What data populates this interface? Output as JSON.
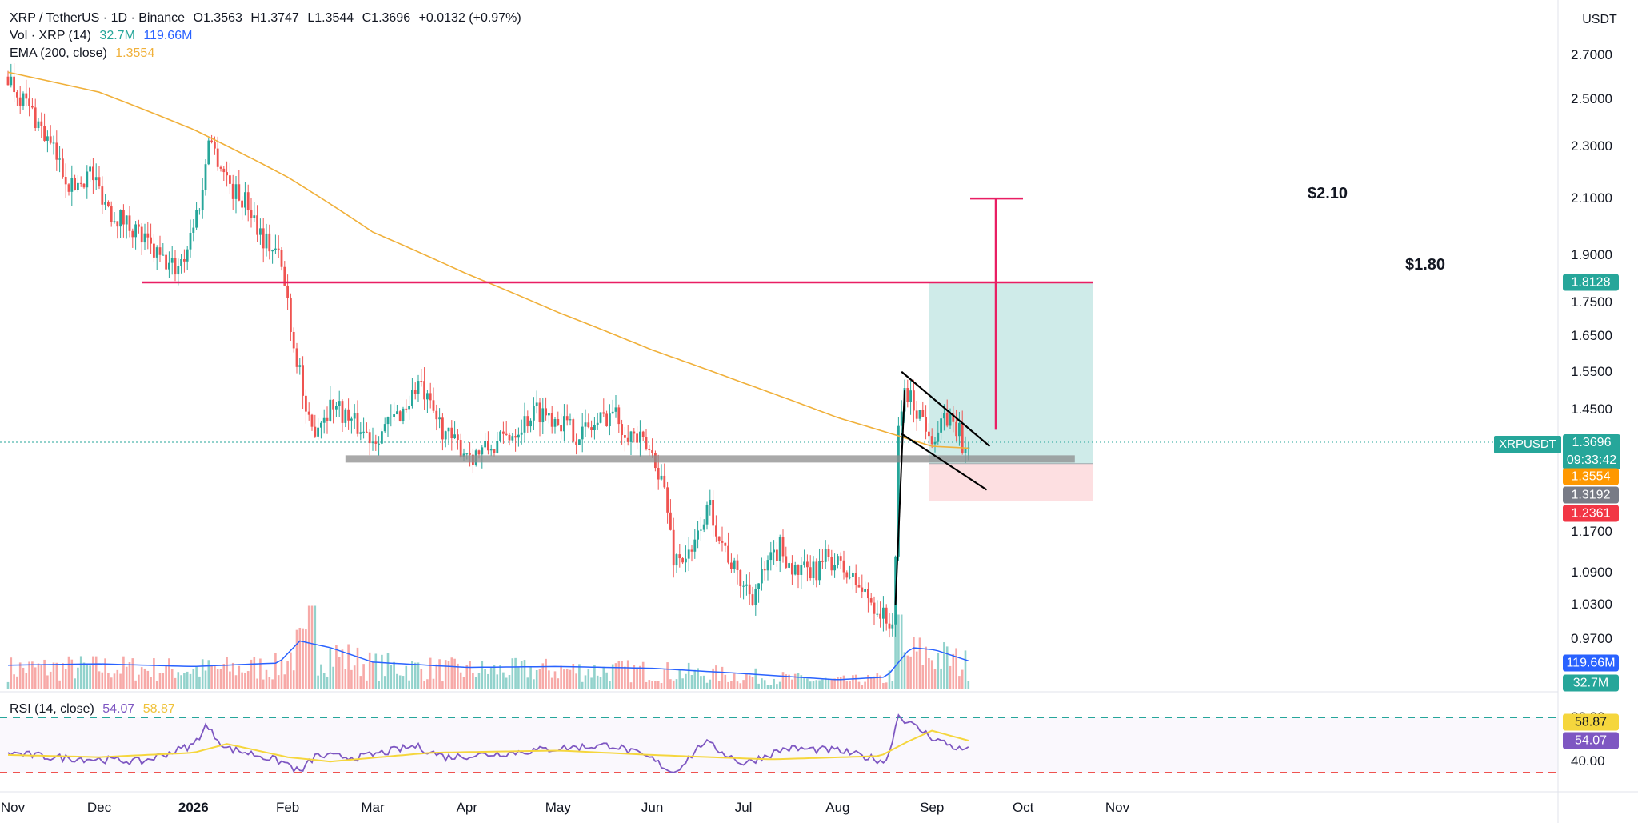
{
  "header": {
    "symbol": "XRP / TetherUS · 1D · Binance",
    "open": "O1.3563",
    "high": "H1.3747",
    "low": "L1.3544",
    "close": "C1.3696",
    "change": "+0.0132 (+0.97%)",
    "vol_label": "Vol · XRP (14)",
    "vol_value": "32.7M",
    "vol_ma": "119.66M",
    "ema_label": "EMA (200, close)",
    "ema_value": "1.3554"
  },
  "rsi_header": {
    "label": "RSI (14, close)",
    "value": "54.07",
    "ma": "58.87"
  },
  "currency": "USDT",
  "price_ticks": [
    "2.7000",
    "2.5000",
    "2.3000",
    "2.1000",
    "1.9000",
    "1.7500",
    "1.6500",
    "1.5500",
    "1.4500",
    "1.1700",
    "1.0900",
    "1.0300",
    "0.9700"
  ],
  "rsi_ticks": [
    "80.00",
    "40.00"
  ],
  "x_labels": [
    {
      "text": "Nov",
      "bold": false
    },
    {
      "text": "Dec",
      "bold": false
    },
    {
      "text": "2026",
      "bold": true
    },
    {
      "text": "Feb",
      "bold": false
    },
    {
      "text": "Mar",
      "bold": false
    },
    {
      "text": "Apr",
      "bold": false
    },
    {
      "text": "May",
      "bold": false
    },
    {
      "text": "Jun",
      "bold": false
    },
    {
      "text": "Jul",
      "bold": false
    },
    {
      "text": "Aug",
      "bold": false
    },
    {
      "text": "Sep",
      "bold": false
    },
    {
      "text": "Oct",
      "bold": false
    },
    {
      "text": "Nov",
      "bold": false
    }
  ],
  "badges": {
    "target": "1.8128",
    "symbol": "XRPUSDT",
    "last_price": "1.3696",
    "countdown": "09:33:42",
    "ema": "1.3554",
    "entry": "1.3192",
    "stop": "1.2361",
    "vol_ma": "119.66M",
    "vol": "32.7M",
    "rsi_ma": "58.87",
    "rsi": "54.07"
  },
  "annotations": {
    "target_210": "$2.10",
    "level_180": "$1.80"
  },
  "colors": {
    "up": "#26a69a",
    "down": "#ef5350",
    "ema": "#f0b03a",
    "resistance": "#e91e63",
    "rsi": "#7e57c2",
    "rsi_ma": "#f5d63d",
    "vol_ma": "#2962ff",
    "support": "#9e9e9e"
  },
  "chart_data": {
    "type": "candlestick",
    "title": "XRP / TetherUS · 1D · Binance",
    "price_range": [
      0.97,
      2.7
    ],
    "scale": "log",
    "x_start": "2025-11-01",
    "x_end": "2026-11-20",
    "price_path": [
      [
        "2025-11-01",
        2.6
      ],
      [
        "2025-11-10",
        2.42
      ],
      [
        "2025-11-15",
        2.3
      ],
      [
        "2025-11-22",
        2.14
      ],
      [
        "2025-11-28",
        2.2
      ],
      [
        "2025-12-05",
        2.05
      ],
      [
        "2025-12-12",
        2.0
      ],
      [
        "2025-12-18",
        1.92
      ],
      [
        "2025-12-22",
        1.88
      ],
      [
        "2025-12-26",
        1.86
      ],
      [
        "2025-12-29",
        1.9
      ],
      [
        "2026-01-04",
        2.12
      ],
      [
        "2026-01-06",
        2.36
      ],
      [
        "2026-01-08",
        2.28
      ],
      [
        "2026-01-14",
        2.13
      ],
      [
        "2026-01-19",
        2.08
      ],
      [
        "2026-01-24",
        1.96
      ],
      [
        "2026-01-29",
        1.9
      ],
      [
        "2026-02-01",
        1.76
      ],
      [
        "2026-02-03",
        1.62
      ],
      [
        "2026-02-05",
        1.56
      ],
      [
        "2026-02-07",
        1.42
      ],
      [
        "2026-02-09",
        1.4
      ],
      [
        "2026-02-13",
        1.44
      ],
      [
        "2026-02-16",
        1.47
      ],
      [
        "2026-02-22",
        1.42
      ],
      [
        "2026-03-01",
        1.38
      ],
      [
        "2026-03-07",
        1.42
      ],
      [
        "2026-03-12",
        1.46
      ],
      [
        "2026-03-16",
        1.52
      ],
      [
        "2026-03-20",
        1.45
      ],
      [
        "2026-03-27",
        1.37
      ],
      [
        "2026-04-03",
        1.34
      ],
      [
        "2026-04-10",
        1.36
      ],
      [
        "2026-04-17",
        1.4
      ],
      [
        "2026-04-24",
        1.45
      ],
      [
        "2026-05-01",
        1.43
      ],
      [
        "2026-05-07",
        1.39
      ],
      [
        "2026-05-13",
        1.41
      ],
      [
        "2026-05-19",
        1.45
      ],
      [
        "2026-05-22",
        1.41
      ],
      [
        "2026-05-28",
        1.37
      ],
      [
        "2026-06-02",
        1.33
      ],
      [
        "2026-06-05",
        1.26
      ],
      [
        "2026-06-08",
        1.12
      ],
      [
        "2026-06-14",
        1.12
      ],
      [
        "2026-06-17",
        1.19
      ],
      [
        "2026-06-20",
        1.22
      ],
      [
        "2026-06-24",
        1.15
      ],
      [
        "2026-06-29",
        1.08
      ],
      [
        "2026-07-04",
        1.05
      ],
      [
        "2026-07-09",
        1.1
      ],
      [
        "2026-07-13",
        1.14
      ],
      [
        "2026-07-18",
        1.09
      ],
      [
        "2026-07-24",
        1.09
      ],
      [
        "2026-07-29",
        1.12
      ],
      [
        "2026-08-02",
        1.1
      ],
      [
        "2026-08-07",
        1.07
      ],
      [
        "2026-08-13",
        1.03
      ],
      [
        "2026-08-17",
        1.0
      ],
      [
        "2026-08-19",
        1.0
      ],
      [
        "2026-08-20",
        1.1
      ],
      [
        "2026-08-21",
        1.4
      ],
      [
        "2026-08-23",
        1.5
      ],
      [
        "2026-08-28",
        1.44
      ],
      [
        "2026-09-02",
        1.38
      ],
      [
        "2026-09-06",
        1.43
      ],
      [
        "2026-09-10",
        1.4
      ],
      [
        "2026-09-11",
        1.34
      ],
      [
        "2026-09-13",
        1.3696
      ]
    ],
    "ema200_path": [
      [
        "2025-11-01",
        2.62
      ],
      [
        "2025-12-01",
        2.53
      ],
      [
        "2026-01-01",
        2.37
      ],
      [
        "2026-02-01",
        2.18
      ],
      [
        "2026-03-01",
        1.98
      ],
      [
        "2026-04-01",
        1.84
      ],
      [
        "2026-05-01",
        1.72
      ],
      [
        "2026-06-01",
        1.61
      ],
      [
        "2026-07-01",
        1.52
      ],
      [
        "2026-08-01",
        1.43
      ],
      [
        "2026-09-01",
        1.36
      ],
      [
        "2026-09-13",
        1.3554
      ]
    ],
    "resistance_180": {
      "from": "2025-12-15",
      "to": "2026-10-24",
      "price": 1.8128
    },
    "support_zone": {
      "from": "2026-02-20",
      "to": "2026-10-18",
      "price": 1.33
    },
    "trade": {
      "from": "2026-08-31",
      "to": "2026-10-24",
      "target": 1.8128,
      "entry": 1.3192,
      "stop": 1.2361
    },
    "target_210": {
      "date": "2026-09-22",
      "price": 2.1,
      "arrow_from": 1.4
    },
    "rsi_range": [
      30,
      90
    ],
    "rsi_bands": [
      80,
      30
    ],
    "rsi_path": [
      [
        "2025-11-01",
        48
      ],
      [
        "2025-11-15",
        44
      ],
      [
        "2025-12-01",
        42
      ],
      [
        "2025-12-15",
        40
      ],
      [
        "2026-01-01",
        55
      ],
      [
        "2026-01-05",
        72
      ],
      [
        "2026-01-12",
        52
      ],
      [
        "2026-01-22",
        46
      ],
      [
        "2026-02-01",
        38
      ],
      [
        "2026-02-05",
        30
      ],
      [
        "2026-02-10",
        45
      ],
      [
        "2026-02-25",
        44
      ],
      [
        "2026-03-15",
        54
      ],
      [
        "2026-03-25",
        44
      ],
      [
        "2026-04-15",
        48
      ],
      [
        "2026-05-01",
        52
      ],
      [
        "2026-05-19",
        55
      ],
      [
        "2026-06-01",
        42
      ],
      [
        "2026-06-08",
        30
      ],
      [
        "2026-06-14",
        46
      ],
      [
        "2026-06-18",
        58
      ],
      [
        "2026-07-01",
        38
      ],
      [
        "2026-07-15",
        52
      ],
      [
        "2026-08-01",
        50
      ],
      [
        "2026-08-17",
        40
      ],
      [
        "2026-08-21",
        82
      ],
      [
        "2026-08-25",
        74
      ],
      [
        "2026-09-01",
        62
      ],
      [
        "2026-09-11",
        50
      ],
      [
        "2026-09-13",
        54
      ]
    ],
    "rsi_ma_path": [
      [
        "2025-11-01",
        46
      ],
      [
        "2025-12-01",
        44
      ],
      [
        "2026-01-01",
        48
      ],
      [
        "2026-01-12",
        56
      ],
      [
        "2026-02-01",
        44
      ],
      [
        "2026-02-15",
        40
      ],
      [
        "2026-03-20",
        48
      ],
      [
        "2026-05-01",
        50
      ],
      [
        "2026-06-01",
        46
      ],
      [
        "2026-06-20",
        44
      ],
      [
        "2026-07-10",
        42
      ],
      [
        "2026-08-15",
        45
      ],
      [
        "2026-08-24",
        58
      ],
      [
        "2026-09-01",
        68
      ],
      [
        "2026-09-13",
        59
      ]
    ],
    "vol_ma_path": [
      [
        "2025-11-01",
        55
      ],
      [
        "2025-12-01",
        58
      ],
      [
        "2026-01-01",
        52
      ],
      [
        "2026-01-29",
        60
      ],
      [
        "2026-02-05",
        110
      ],
      [
        "2026-02-15",
        95
      ],
      [
        "2026-03-01",
        62
      ],
      [
        "2026-04-01",
        50
      ],
      [
        "2026-05-01",
        52
      ],
      [
        "2026-06-01",
        48
      ],
      [
        "2026-07-01",
        36
      ],
      [
        "2026-08-01",
        22
      ],
      [
        "2026-08-17",
        28
      ],
      [
        "2026-08-25",
        95
      ],
      [
        "2026-09-02",
        90
      ],
      [
        "2026-09-13",
        65
      ]
    ]
  }
}
